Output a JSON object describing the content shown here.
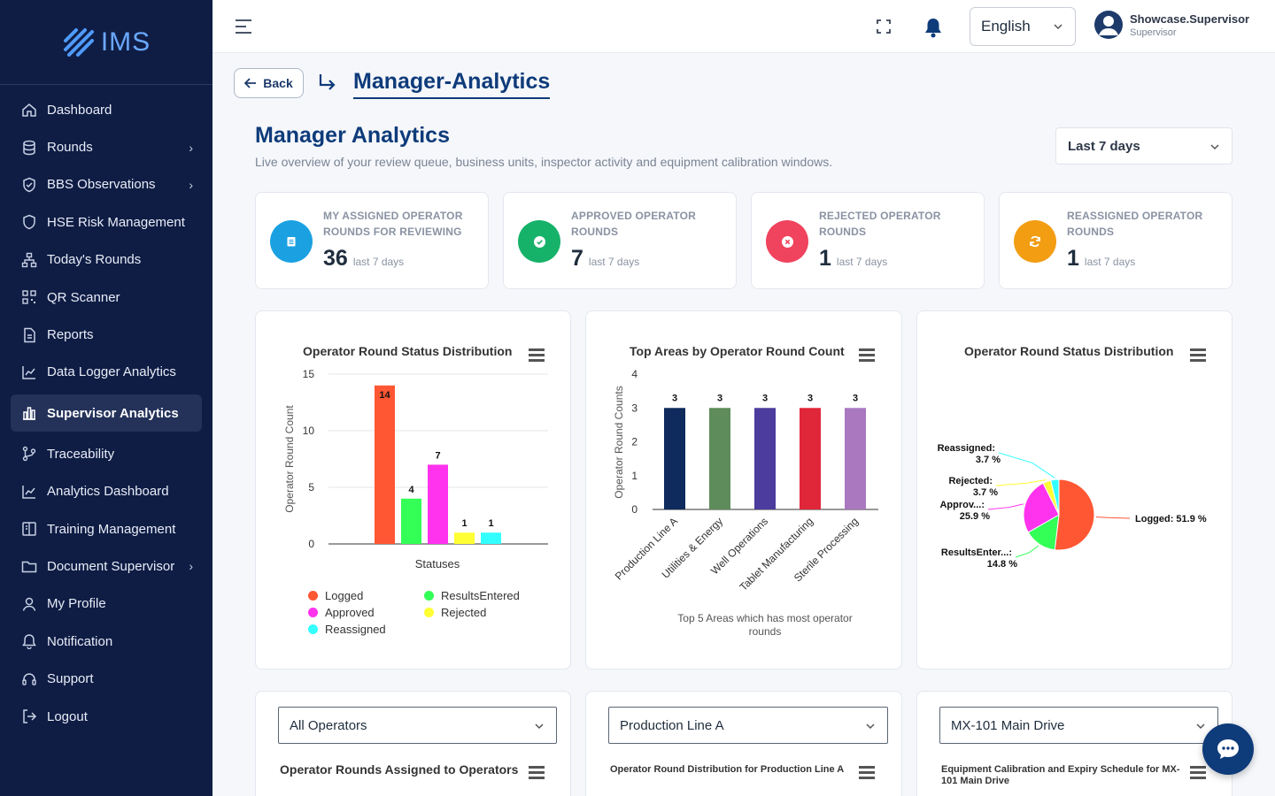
{
  "brand": {
    "name": "IMS"
  },
  "sidebar": {
    "items": [
      {
        "label": "Dashboard",
        "icon": "home-icon",
        "chevron": false
      },
      {
        "label": "Rounds",
        "icon": "database-icon",
        "chevron": true
      },
      {
        "label": "BBS Observations",
        "icon": "shield-check-icon",
        "chevron": true
      },
      {
        "label": "HSE Risk Management",
        "icon": "shield-icon",
        "chevron": false
      },
      {
        "label": "Today's Rounds",
        "icon": "hierarchy-icon",
        "chevron": false
      },
      {
        "label": "QR Scanner",
        "icon": "qr-icon",
        "chevron": false
      },
      {
        "label": "Reports",
        "icon": "file-icon",
        "chevron": false
      },
      {
        "label": "Data Logger Analytics",
        "icon": "line-chart-icon",
        "chevron": false
      },
      {
        "label": "Supervisor Analytics",
        "icon": "bar-chart-icon",
        "chevron": false,
        "active": true
      },
      {
        "label": "Traceability",
        "icon": "git-branch-icon",
        "chevron": false
      },
      {
        "label": "Analytics Dashboard",
        "icon": "line-chart-icon",
        "chevron": false
      },
      {
        "label": "Training Management",
        "icon": "book-icon",
        "chevron": false
      },
      {
        "label": "Document Supervisor",
        "icon": "folder-icon",
        "chevron": true
      },
      {
        "label": "My Profile",
        "icon": "user-icon",
        "chevron": false
      },
      {
        "label": "Notification",
        "icon": "bell-icon",
        "chevron": false
      },
      {
        "label": "Support",
        "icon": "headset-icon",
        "chevron": false
      },
      {
        "label": "Logout",
        "icon": "logout-icon",
        "chevron": false
      }
    ]
  },
  "topbar": {
    "language": "English",
    "user_name": "Showcase.Supervisor",
    "user_role": "Supervisor"
  },
  "breadcrumb": {
    "back_label": "Back",
    "current": "Manager-Analytics"
  },
  "page": {
    "title": "Manager Analytics",
    "subtitle": "Live overview of your review queue, business units, inspector activity and equipment calibration windows.",
    "range": "Last 7 days"
  },
  "kpis": [
    {
      "label": "MY ASSIGNED OPERATOR ROUNDS FOR REVIEWING",
      "value": "36",
      "period": "last 7 days",
      "color": "#1ba1e2",
      "icon": "clipboard-icon"
    },
    {
      "label": "APPROVED OPERATOR ROUNDS",
      "value": "7",
      "period": "last 7 days",
      "color": "#17b26a",
      "icon": "check-circle-icon"
    },
    {
      "label": "REJECTED OPERATOR ROUNDS",
      "value": "1",
      "period": "last 7 days",
      "color": "#f0435d",
      "icon": "x-circle-icon"
    },
    {
      "label": "REASSIGNED OPERATOR ROUNDS",
      "value": "1",
      "period": "last 7 days",
      "color": "#f29d12",
      "icon": "refresh-icon"
    }
  ],
  "chart_data": [
    {
      "type": "bar",
      "title": "Operator Round Status Distribution",
      "xlabel": "Statuses",
      "ylabel": "Operator Round Count",
      "ylim": [
        0,
        15
      ],
      "yticks": [
        0,
        5,
        10,
        15
      ],
      "categories": [
        "Logged",
        "ResultsEntered",
        "Approved",
        "Rejected",
        "Reassigned"
      ],
      "values": [
        14,
        4,
        7,
        1,
        1
      ],
      "colors": [
        "#ff5733",
        "#33ff57",
        "#ff33ee",
        "#ffff33",
        "#33ffff"
      ],
      "legend": [
        "Logged",
        "ResultsEntered",
        "Approved",
        "Rejected",
        "Reassigned"
      ],
      "legend_placement": "bottom"
    },
    {
      "type": "bar",
      "title": "Top Areas by Operator Round Count",
      "ylabel": "Operator Round Counts",
      "xlabel": "Top 5 Areas which has most operator rounds",
      "ylim": [
        0,
        4
      ],
      "yticks": [
        0,
        1,
        2,
        3,
        4
      ],
      "categories": [
        "Production Line A",
        "Utilities & Energy",
        "Well Operations",
        "Tablet Manufacturing",
        "Sterile Processing"
      ],
      "values": [
        3,
        3,
        3,
        3,
        3
      ],
      "colors": [
        "#0f2a5c",
        "#5e8c5a",
        "#4b3c9e",
        "#e02639",
        "#a978bf"
      ]
    },
    {
      "type": "pie",
      "title": "Operator Round Status Distribution",
      "slices": [
        {
          "name": "Logged",
          "value": 51.9,
          "label": "Logged: 51.9 %",
          "color": "#ff5733"
        },
        {
          "name": "ResultsEntered",
          "value": 14.8,
          "label": "ResultsEnter...: 14.8 %",
          "color": "#33ff57"
        },
        {
          "name": "Approved",
          "value": 25.9,
          "label": "Approv...: 25.9 %",
          "color": "#ff33ee"
        },
        {
          "name": "Rejected",
          "value": 3.7,
          "label": "Rejected: 3.7 %",
          "color": "#ffff33"
        },
        {
          "name": "Reassigned",
          "value": 3.7,
          "label": "Reassigned: 3.7 %",
          "color": "#33ffff"
        }
      ]
    }
  ],
  "bottom_cards": [
    {
      "select": "All Operators",
      "title": "Operator Rounds Assigned to Operators"
    },
    {
      "select": "Production Line A",
      "title": "Operator Round Distribution for Production Line A"
    },
    {
      "select": "MX-101 Main Drive",
      "title": "Equipment Calibration and Expiry Schedule for MX-101 Main Drive"
    }
  ]
}
